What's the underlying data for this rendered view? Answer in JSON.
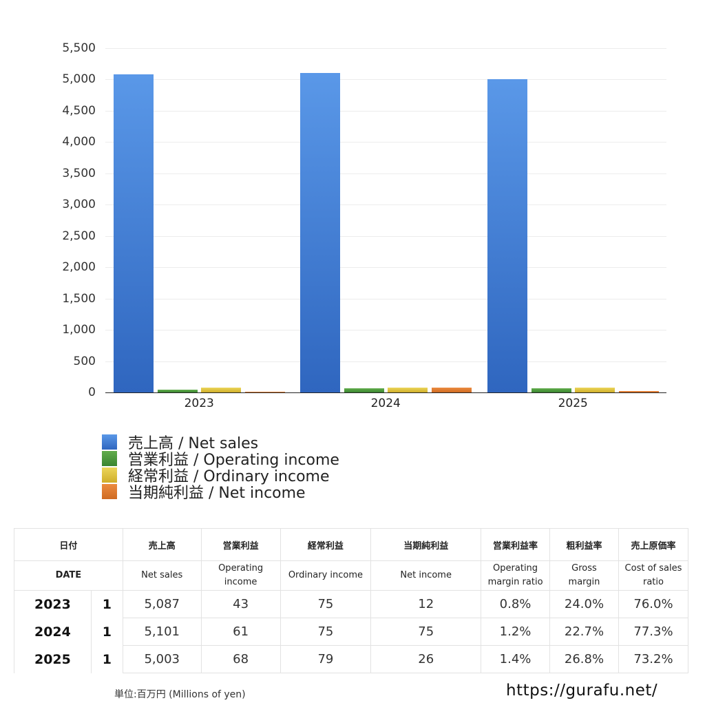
{
  "chart_data": {
    "type": "bar",
    "title": "",
    "xlabel": "",
    "ylabel": "",
    "ylim": [
      0,
      5500
    ],
    "yticks": [
      0,
      500,
      1000,
      1500,
      2000,
      2500,
      3000,
      3500,
      4000,
      4500,
      5000,
      5500
    ],
    "ytick_labels": [
      "0",
      "500",
      "1,000",
      "1,500",
      "2,000",
      "2,500",
      "3,000",
      "3,500",
      "4,000",
      "4,500",
      "5,000",
      "5,500"
    ],
    "categories": [
      "2023",
      "2024",
      "2025"
    ],
    "grid": true,
    "legend_position": "bottom",
    "series": [
      {
        "name": "売上高 / Net sales",
        "color": "#4a86dc",
        "values": [
          5087,
          5101,
          5003
        ]
      },
      {
        "name": "営業利益 / Operating income",
        "color": "#4c9a3c",
        "values": [
          43,
          61,
          68
        ]
      },
      {
        "name": "経常利益 / Ordinary income",
        "color": "#e0c43c",
        "values": [
          75,
          75,
          79
        ]
      },
      {
        "name": "当期純利益 / Net income",
        "color": "#e07a30",
        "values": [
          12,
          75,
          26
        ]
      }
    ]
  },
  "legend": [
    {
      "label": "売上高 / Net sales",
      "color_top": "#5a98e8",
      "color_bottom": "#2f66bf"
    },
    {
      "label": "営業利益 / Operating income",
      "color_top": "#62ad4c",
      "color_bottom": "#3a8530"
    },
    {
      "label": "経常利益 / Ordinary income",
      "color_top": "#ecd65a",
      "color_bottom": "#cfae2a"
    },
    {
      "label": "当期純利益 / Net income",
      "color_top": "#ec8c40",
      "color_bottom": "#cf6a22"
    }
  ],
  "table": {
    "header_jp": [
      "日付",
      "売上高",
      "営業利益",
      "経常利益",
      "当期純利益",
      "営業利益率",
      "粗利益率",
      "売上原価率"
    ],
    "header_en": [
      "DATE",
      "Net sales",
      "Operating income",
      "Ordinary income",
      "Net income",
      "Operating margin ratio",
      "Gross margin",
      "Cost of sales ratio"
    ],
    "rows": [
      {
        "year": "2023",
        "quarter": "1",
        "net_sales": "5,087",
        "operating_income": "43",
        "ordinary_income": "75",
        "net_income": "12",
        "operating_margin": "0.8%",
        "gross_margin": "24.0%",
        "cost_of_sales": "76.0%"
      },
      {
        "year": "2024",
        "quarter": "1",
        "net_sales": "5,101",
        "operating_income": "61",
        "ordinary_income": "75",
        "net_income": "75",
        "operating_margin": "1.2%",
        "gross_margin": "22.7%",
        "cost_of_sales": "77.3%"
      },
      {
        "year": "2025",
        "quarter": "1",
        "net_sales": "5,003",
        "operating_income": "68",
        "ordinary_income": "79",
        "net_income": "26",
        "operating_margin": "1.4%",
        "gross_margin": "26.8%",
        "cost_of_sales": "73.2%"
      }
    ]
  },
  "footer": {
    "unit": "単位:百万円 (Millions of yen)",
    "site": "https://gurafu.net/"
  }
}
